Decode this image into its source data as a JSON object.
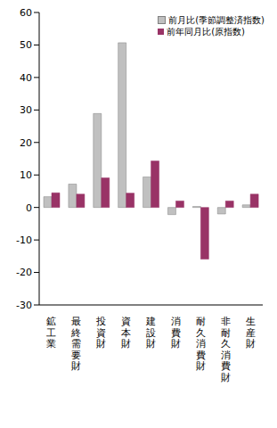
{
  "chart_data": {
    "type": "bar",
    "categories": [
      "鉱工業",
      "最終需要財",
      "投資財",
      "資本財",
      "建設財",
      "消費財",
      "耐久消費財",
      "非耐久消費財",
      "生産財"
    ],
    "series": [
      {
        "name": "前月比(季節調整済指数)",
        "color": "#c0c0c0",
        "values": [
          3.3,
          7.2,
          28.9,
          50.7,
          9.4,
          -2.2,
          0.3,
          -2.0,
          0.8
        ]
      },
      {
        "name": "前年同月比(原指数)",
        "color": "#993366",
        "values": [
          4.5,
          4.1,
          9.1,
          4.4,
          14.3,
          2.0,
          -15.9,
          2.0,
          4.1
        ]
      }
    ],
    "ylim": [
      -30,
      60
    ],
    "yticks": [
      -30,
      -20,
      -10,
      0,
      10,
      20,
      30,
      40,
      50,
      60
    ],
    "grid": false,
    "legend": "upper right"
  }
}
